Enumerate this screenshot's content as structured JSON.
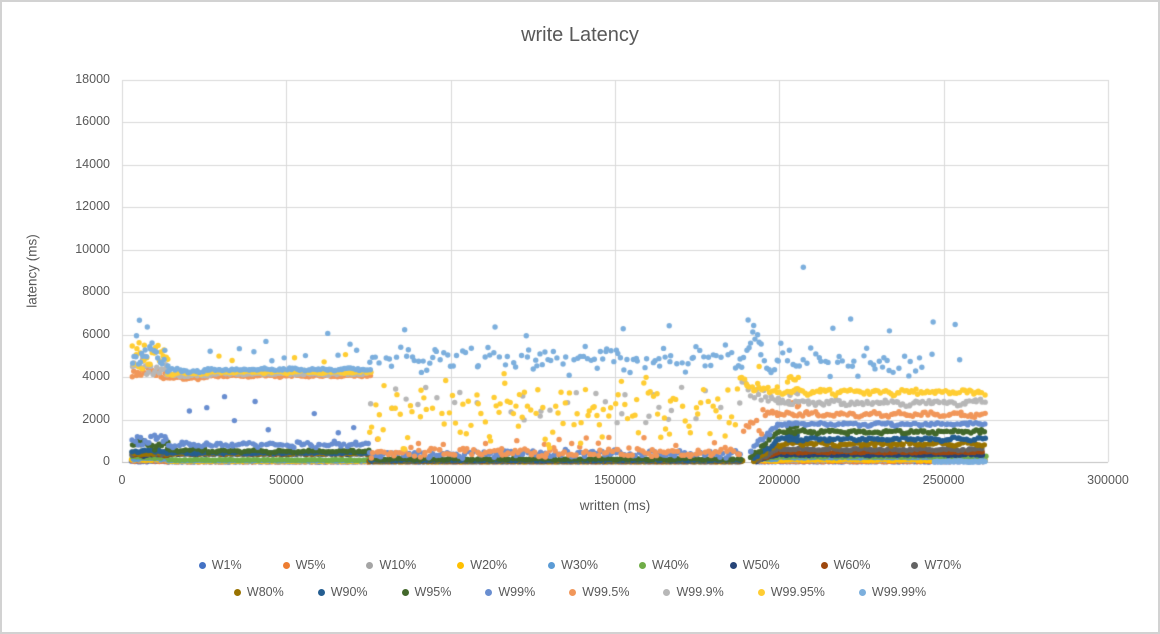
{
  "chart_data": {
    "type": "scatter",
    "title": "write Latency",
    "xlabel": "written (ms)",
    "ylabel": "latency (ms)",
    "xlim": [
      0,
      300000
    ],
    "ylim": [
      0,
      18000
    ],
    "xticks": [
      0,
      50000,
      100000,
      150000,
      200000,
      250000,
      300000
    ],
    "yticks": [
      0,
      2000,
      4000,
      6000,
      8000,
      10000,
      12000,
      14000,
      16000,
      18000
    ],
    "grid": true,
    "legend_position": "bottom",
    "legend_rows": [
      9,
      8
    ],
    "marker_px": 5.4,
    "seed": 7,
    "colors": {
      "grid": "#D9D9D9",
      "axis": "#BFBFBF",
      "text": "#595959",
      "border": "#D2D2D2"
    },
    "series": [
      {
        "name": "W1%",
        "color": "#4472C4",
        "segments": [
          {
            "x0": 3200,
            "x1": 14000,
            "st": 800,
            "y": 25,
            "j": 18
          },
          {
            "x0": 14000,
            "x1": 75500,
            "st": 950,
            "y": 7,
            "j": 5
          },
          {
            "x0": 75500,
            "x1": 188500,
            "st": 1100,
            "y": 4,
            "j": 3
          },
          {
            "x0": 194000,
            "x1": 262500,
            "st": 1000,
            "y": 10,
            "j": 7
          }
        ]
      },
      {
        "name": "W5%",
        "color": "#ED7D31",
        "segments": [
          {
            "x0": 3200,
            "x1": 14000,
            "st": 750,
            "y": 55,
            "j": 38
          },
          {
            "x0": 14000,
            "x1": 75500,
            "st": 900,
            "y": 14,
            "j": 9
          },
          {
            "x0": 75500,
            "x1": 188500,
            "st": 950,
            "y": 8,
            "j": 6
          },
          {
            "x0": 194000,
            "x1": 262500,
            "st": 900,
            "y": 28,
            "j": 14
          }
        ]
      },
      {
        "name": "W10%",
        "color": "#A5A5A5",
        "segments": [
          {
            "x0": 3200,
            "x1": 14000,
            "st": 750,
            "y": 85,
            "j": 45
          },
          {
            "x0": 14000,
            "x1": 75500,
            "st": 950,
            "y": 28,
            "j": 9
          },
          {
            "x0": 75500,
            "x1": 188500,
            "st": 1100,
            "y": 12,
            "j": 6
          },
          {
            "x0": 194000,
            "x1": 262500,
            "st": 900,
            "y": 75,
            "j": 25
          }
        ]
      },
      {
        "name": "W20%",
        "color": "#FFC000",
        "segments": [
          {
            "x0": 3200,
            "x1": 14000,
            "st": 700,
            "y": 120,
            "j": 55
          },
          {
            "x0": 14000,
            "x1": 75500,
            "st": 800,
            "y": 40,
            "j": 12
          },
          {
            "x0": 75500,
            "x1": 188500,
            "st": 1000,
            "y": 17,
            "j": 8
          },
          {
            "x0": 193500,
            "x1": 199500,
            "st": 800,
            "y": 60,
            "j": 30
          },
          {
            "x0": 199500,
            "x1": 262500,
            "st": 700,
            "y": 105,
            "j": 45
          }
        ]
      },
      {
        "name": "W30%",
        "color": "#5B9BD5",
        "segments": [
          {
            "x0": 3200,
            "x1": 14000,
            "st": 700,
            "y": 165,
            "j": 65
          },
          {
            "x0": 14000,
            "x1": 75500,
            "st": 700,
            "y": 68,
            "j": 16
          },
          {
            "x0": 75500,
            "x1": 188500,
            "st": 900,
            "y": 24,
            "j": 10
          },
          {
            "x0": 193000,
            "x1": 199500,
            "st": 800,
            "y": 140,
            "j": 50
          },
          {
            "x0": 199500,
            "x1": 262500,
            "st": 800,
            "y": 215,
            "j": 35
          }
        ]
      },
      {
        "name": "W40%",
        "color": "#70AD47",
        "segments": [
          {
            "x0": 3200,
            "x1": 14000,
            "st": 700,
            "y": 230,
            "j": 80
          },
          {
            "x0": 14000,
            "x1": 75500,
            "st": 900,
            "y": 95,
            "j": 25
          },
          {
            "x0": 75500,
            "x1": 188500,
            "st": 1000,
            "y": 32,
            "j": 12
          },
          {
            "x0": 193000,
            "x1": 199500,
            "st": 800,
            "y": 200,
            "j": 55
          },
          {
            "x0": 199500,
            "x1": 262500,
            "st": 900,
            "y": 265,
            "j": 35
          }
        ]
      },
      {
        "name": "W50%",
        "color": "#264478",
        "segments": [
          {
            "x0": 3200,
            "x1": 14000,
            "st": 700,
            "y": 350,
            "j": 75
          },
          {
            "x0": 14000,
            "x1": 75500,
            "st": 900,
            "y": 378,
            "j": 25
          },
          {
            "x0": 75500,
            "x1": 188500,
            "st": 1000,
            "y": 42,
            "j": 13
          },
          {
            "x0": 193000,
            "x1": 199500,
            "st": 700,
            "y": 45,
            "y2": 335,
            "j": 45
          },
          {
            "x0": 199500,
            "x1": 262500,
            "st": 800,
            "y": 340,
            "j": 40
          }
        ]
      },
      {
        "name": "W60%",
        "color": "#9E480E",
        "segments": [
          {
            "x0": 3200,
            "x1": 14000,
            "st": 700,
            "y": 370,
            "j": 75
          },
          {
            "x0": 14000,
            "x1": 75500,
            "st": 900,
            "y": 385,
            "j": 25
          },
          {
            "x0": 75500,
            "x1": 188500,
            "st": 1000,
            "y": 47,
            "j": 14
          },
          {
            "x0": 192500,
            "x1": 199500,
            "st": 700,
            "y": 52,
            "y2": 460,
            "j": 50
          },
          {
            "x0": 199500,
            "x1": 262500,
            "st": 800,
            "y": 465,
            "j": 48
          }
        ]
      },
      {
        "name": "W70%",
        "color": "#636363",
        "segments": [
          {
            "x0": 3200,
            "x1": 14000,
            "st": 700,
            "y": 390,
            "j": 80
          },
          {
            "x0": 14000,
            "x1": 75500,
            "st": 900,
            "y": 393,
            "j": 27
          },
          {
            "x0": 75500,
            "x1": 188500,
            "st": 1000,
            "y": 53,
            "j": 16
          },
          {
            "x0": 192500,
            "x1": 199500,
            "st": 700,
            "y": 60,
            "y2": 590,
            "j": 60
          },
          {
            "x0": 199500,
            "x1": 262500,
            "st": 800,
            "y": 595,
            "j": 55
          }
        ]
      },
      {
        "name": "W80%",
        "color": "#997300",
        "segments": [
          {
            "x0": 3200,
            "x1": 14000,
            "st": 700,
            "y": 420,
            "j": 90
          },
          {
            "x0": 14000,
            "x1": 75500,
            "st": 900,
            "y": 403,
            "j": 30
          },
          {
            "x0": 75500,
            "x1": 188500,
            "st": 1000,
            "y": 62,
            "j": 18
          },
          {
            "x0": 192000,
            "x1": 199500,
            "st": 700,
            "y": 80,
            "y2": 830,
            "j": 90
          },
          {
            "x0": 199500,
            "x1": 262500,
            "st": 700,
            "y": 855,
            "j": 110
          },
          {
            "x0": 202500,
            "x1": 206000,
            "st": 600,
            "y": 1010,
            "j": 90
          }
        ]
      },
      {
        "name": "W90%",
        "color": "#255E91",
        "segments": [
          {
            "x0": 3200,
            "x1": 14000,
            "st": 650,
            "y": 520,
            "j": 105
          },
          {
            "x0": 14000,
            "x1": 75500,
            "st": 750,
            "y": 432,
            "j": 46
          },
          {
            "x0": 75500,
            "x1": 188500,
            "st": 900,
            "y": 88,
            "j": 20
          },
          {
            "x0": 192000,
            "x1": 199500,
            "st": 700,
            "y": 100,
            "y2": 1040,
            "j": 95
          },
          {
            "x0": 199500,
            "x1": 262500,
            "st": 700,
            "y": 1075,
            "j": 95
          },
          {
            "x0": 202500,
            "x1": 206000,
            "st": 600,
            "y": 1290,
            "j": 90
          }
        ]
      },
      {
        "name": "W95%",
        "color": "#43682B",
        "segments": [
          {
            "x0": 3200,
            "x1": 14000,
            "st": 600,
            "y": 830,
            "j": 225
          },
          {
            "x0": 14000,
            "x1": 26000,
            "st": 800,
            "y": 560,
            "j": 85
          },
          {
            "x0": 26000,
            "x1": 75500,
            "st": 800,
            "y": 505,
            "j": 70
          },
          {
            "x0": 75500,
            "x1": 188500,
            "st": 900,
            "y": 140,
            "j": 45
          },
          {
            "x0": 191500,
            "x1": 199500,
            "st": 650,
            "y": 210,
            "y2": 1400,
            "j": 140
          },
          {
            "x0": 199500,
            "x1": 262500,
            "st": 700,
            "y": 1430,
            "j": 105
          },
          {
            "x0": 202500,
            "x1": 206000,
            "st": 600,
            "y": 1700,
            "j": 110
          }
        ]
      },
      {
        "name": "W99%",
        "color": "#698ED0",
        "segments": [
          {
            "x0": 3200,
            "x1": 14000,
            "st": 650,
            "y": 1060,
            "j": 270
          },
          {
            "x0": 14000,
            "x1": 75500,
            "st": 800,
            "y": 815,
            "j": 145
          },
          {
            "x0": 75500,
            "x1": 188500,
            "st": 800,
            "y": 390,
            "j": 190
          },
          {
            "x0": 191000,
            "x1": 199500,
            "st": 650,
            "y": 520,
            "y2": 1750,
            "j": 180
          },
          {
            "x0": 199500,
            "x1": 262500,
            "st": 700,
            "y": 1790,
            "j": 95
          }
        ],
        "outliers": [
          [
            20500,
            2400
          ],
          [
            25800,
            2560
          ],
          [
            31200,
            3080
          ],
          [
            34200,
            1950
          ],
          [
            40500,
            2850
          ],
          [
            44500,
            1520
          ],
          [
            58500,
            2280
          ],
          [
            65800,
            1380
          ],
          [
            70500,
            1620
          ]
        ]
      },
      {
        "name": "W99.5%",
        "color": "#F1975A",
        "segments": [
          {
            "x0": 3200,
            "x1": 9000,
            "st": 800,
            "y": 4850,
            "j": 260,
            "p": 0.55
          },
          {
            "x0": 3200,
            "x1": 14000,
            "st": 520,
            "y": 4280,
            "j": 300
          },
          {
            "x0": 14000,
            "x1": 26000,
            "st": 700,
            "y": 3960,
            "j": 90
          },
          {
            "x0": 26000,
            "x1": 75500,
            "st": 650,
            "y": 4060,
            "j": 72
          },
          {
            "x0": 75500,
            "x1": 188500,
            "st": 900,
            "y": 420,
            "j": 250
          },
          {
            "x0": 75500,
            "x1": 188500,
            "st": 2900,
            "y": 950,
            "j": 400,
            "p": 0.4
          },
          {
            "x0": 189000,
            "x1": 195000,
            "st": 800,
            "y": 1600,
            "j": 700
          },
          {
            "x0": 195000,
            "x1": 199500,
            "st": 650,
            "y": 2450,
            "j": 280
          },
          {
            "x0": 199500,
            "x1": 262500,
            "st": 750,
            "y": 2240,
            "j": 135
          },
          {
            "x0": 202500,
            "x1": 206500,
            "st": 600,
            "y": 2780,
            "j": 190
          }
        ]
      },
      {
        "name": "W99.9%",
        "color": "#B7B7B7",
        "segments": [
          {
            "x0": 3200,
            "x1": 14000,
            "st": 620,
            "y": 4450,
            "j": 340
          },
          {
            "x0": 14000,
            "x1": 26000,
            "st": 800,
            "y": 4090,
            "j": 70
          },
          {
            "x0": 26000,
            "x1": 75500,
            "st": 800,
            "y": 4145,
            "j": 58
          },
          {
            "x0": 75500,
            "x1": 188500,
            "st": 1700,
            "y": 2750,
            "j": 1250,
            "p": 0.6
          },
          {
            "x0": 189000,
            "x1": 196000,
            "st": 800,
            "y": 3300,
            "j": 550
          },
          {
            "x0": 196000,
            "x1": 199500,
            "st": 700,
            "y": 2950,
            "j": 280
          },
          {
            "x0": 199500,
            "x1": 262500,
            "st": 750,
            "y": 2800,
            "j": 160
          },
          {
            "x0": 202500,
            "x1": 206500,
            "st": 600,
            "y": 3280,
            "j": 190
          }
        ]
      },
      {
        "name": "W99.95%",
        "color": "#FFCD33",
        "segments": [
          {
            "x0": 3200,
            "x1": 14000,
            "st": 480,
            "y": 4950,
            "j": 620
          },
          {
            "x0": 14000,
            "x1": 26000,
            "st": 750,
            "y": 4180,
            "j": 90
          },
          {
            "x0": 26000,
            "x1": 75500,
            "st": 750,
            "y": 4235,
            "j": 78
          },
          {
            "x0": 75500,
            "x1": 188500,
            "st": 750,
            "y": 2350,
            "j": 1800,
            "p": 0.85
          },
          {
            "x0": 188000,
            "x1": 194000,
            "st": 600,
            "y": 3900,
            "j": 850
          },
          {
            "x0": 194000,
            "x1": 199500,
            "st": 650,
            "y": 3380,
            "j": 300
          },
          {
            "x0": 199500,
            "x1": 262500,
            "st": 700,
            "y": 3300,
            "j": 170
          },
          {
            "x0": 202500,
            "x1": 206000,
            "st": 600,
            "y": 3820,
            "j": 200
          }
        ],
        "outliers": [
          [
            5200,
            5620
          ],
          [
            6800,
            5500
          ],
          [
            29500,
            4990
          ],
          [
            33500,
            4780
          ],
          [
            52500,
            4910
          ],
          [
            61500,
            4720
          ],
          [
            68000,
            5060
          ]
        ]
      },
      {
        "name": "W99.99%",
        "color": "#7CAFDD",
        "segments": [
          {
            "x0": 3200,
            "x1": 14000,
            "st": 560,
            "y": 5000,
            "j": 680
          },
          {
            "x0": 14000,
            "x1": 26000,
            "st": 700,
            "y": 4290,
            "j": 110
          },
          {
            "x0": 26000,
            "x1": 75500,
            "st": 650,
            "y": 4360,
            "j": 72
          },
          {
            "x0": 26000,
            "x1": 75500,
            "st": 2400,
            "y": 5300,
            "j": 800,
            "p": 0.7
          },
          {
            "x0": 75500,
            "x1": 188500,
            "st": 850,
            "y": 4850,
            "j": 700,
            "p": 0.8
          },
          {
            "x0": 188000,
            "x1": 194500,
            "st": 650,
            "y": 5300,
            "j": 1000
          },
          {
            "x0": 194500,
            "x1": 199500,
            "st": 800,
            "y": 4700,
            "j": 800
          },
          {
            "x0": 199500,
            "x1": 246500,
            "st": 900,
            "y": 4750,
            "j": 900,
            "p": 0.85
          },
          {
            "x0": 246500,
            "x1": 258000,
            "st": 1500,
            "y": 4900,
            "j": 800,
            "p": 0.55
          },
          {
            "x0": 247000,
            "x1": 262800,
            "st": 450,
            "y": 20,
            "j": 35
          }
        ],
        "outliers": [
          [
            4400,
            5950
          ],
          [
            5300,
            6680
          ],
          [
            7700,
            6360
          ],
          [
            86000,
            6230
          ],
          [
            113500,
            6360
          ],
          [
            123000,
            5950
          ],
          [
            152500,
            6280
          ],
          [
            166500,
            6420
          ],
          [
            190500,
            6690
          ],
          [
            192200,
            6430
          ],
          [
            207300,
            9180
          ],
          [
            216300,
            6300
          ],
          [
            221700,
            6740
          ],
          [
            233500,
            6180
          ],
          [
            246800,
            6600
          ],
          [
            253500,
            6480
          ]
        ]
      }
    ]
  }
}
